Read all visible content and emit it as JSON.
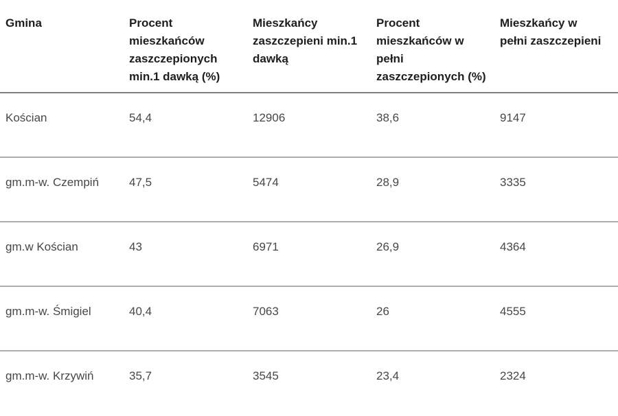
{
  "chart_data": {
    "type": "table",
    "title": "",
    "columns": [
      "Gmina",
      "Procent\nmieszkańców\nzaszczepionych\nmin.1 dawką (%)",
      "Mieszkańcy\nzaszczepieni min.1\ndawką",
      "Procent\nmieszkańców w\npełni\nzaszczepionych (%)",
      "Mieszkańcy w\npełni zaszczepieni"
    ],
    "columns_plain": [
      "Gmina",
      "Procent mieszkańców zaszczepionych min.1 dawką (%)",
      "Mieszkańcy zaszczepieni min.1 dawką",
      "Procent mieszkańców w pełni zaszczepionych (%)",
      "Mieszkańcy w pełni zaszczepieni"
    ],
    "rows": [
      [
        "Kościan",
        "54,4",
        "12906",
        "38,6",
        "9147"
      ],
      [
        "gm.m-w. Czempiń",
        "47,5",
        "5474",
        "28,9",
        "3335"
      ],
      [
        "gm.w Kościan",
        "43",
        "6971",
        "26,9",
        "4364"
      ],
      [
        "gm.m-w. Śmigiel",
        "40,4",
        "7063",
        "26",
        "4555"
      ],
      [
        "gm.m-w. Krzywiń",
        "35,7",
        "3545",
        "23,4",
        "2324"
      ]
    ]
  },
  "colors": {
    "background": "#ffffff",
    "header_text": "#1e1e1e",
    "body_text": "#474747",
    "header_border": "#7f7f7f",
    "row_border": "#adadad"
  }
}
